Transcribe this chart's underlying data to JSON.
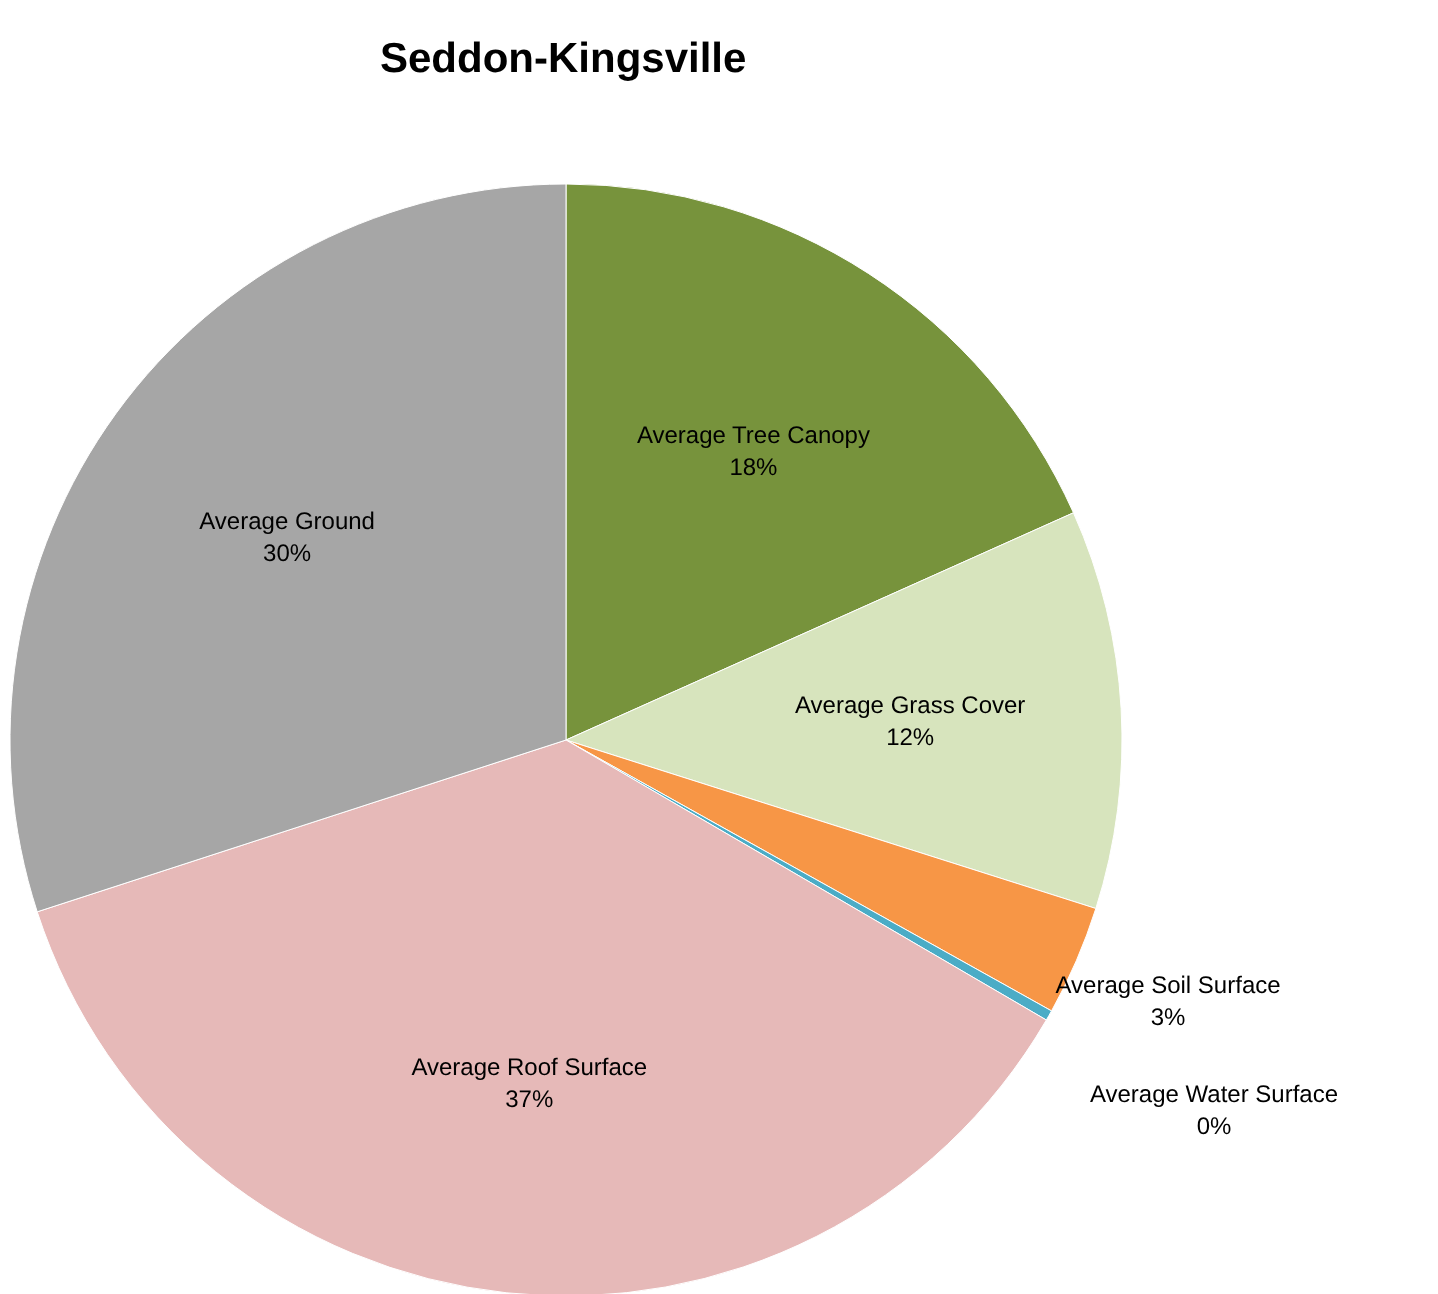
{
  "chart_data": {
    "type": "pie",
    "title": "Seddon-Kingsville",
    "categories": [
      "Average Tree Canopy",
      "Average Grass Cover",
      "Average Soil Surface",
      "Average Water Surface",
      "Average Roof Surface",
      "Average Ground"
    ],
    "values": [
      18.3,
      11.6,
      3.2,
      0.3,
      36.6,
      30.0
    ],
    "value_labels": [
      "18%",
      "12%",
      "3%",
      "0%",
      "37%",
      "30%"
    ],
    "colors": [
      "#77933c",
      "#d7e4bd",
      "#f79646",
      "#4bacc6",
      "#e6b9b8",
      "#a6a6a6"
    ]
  }
}
